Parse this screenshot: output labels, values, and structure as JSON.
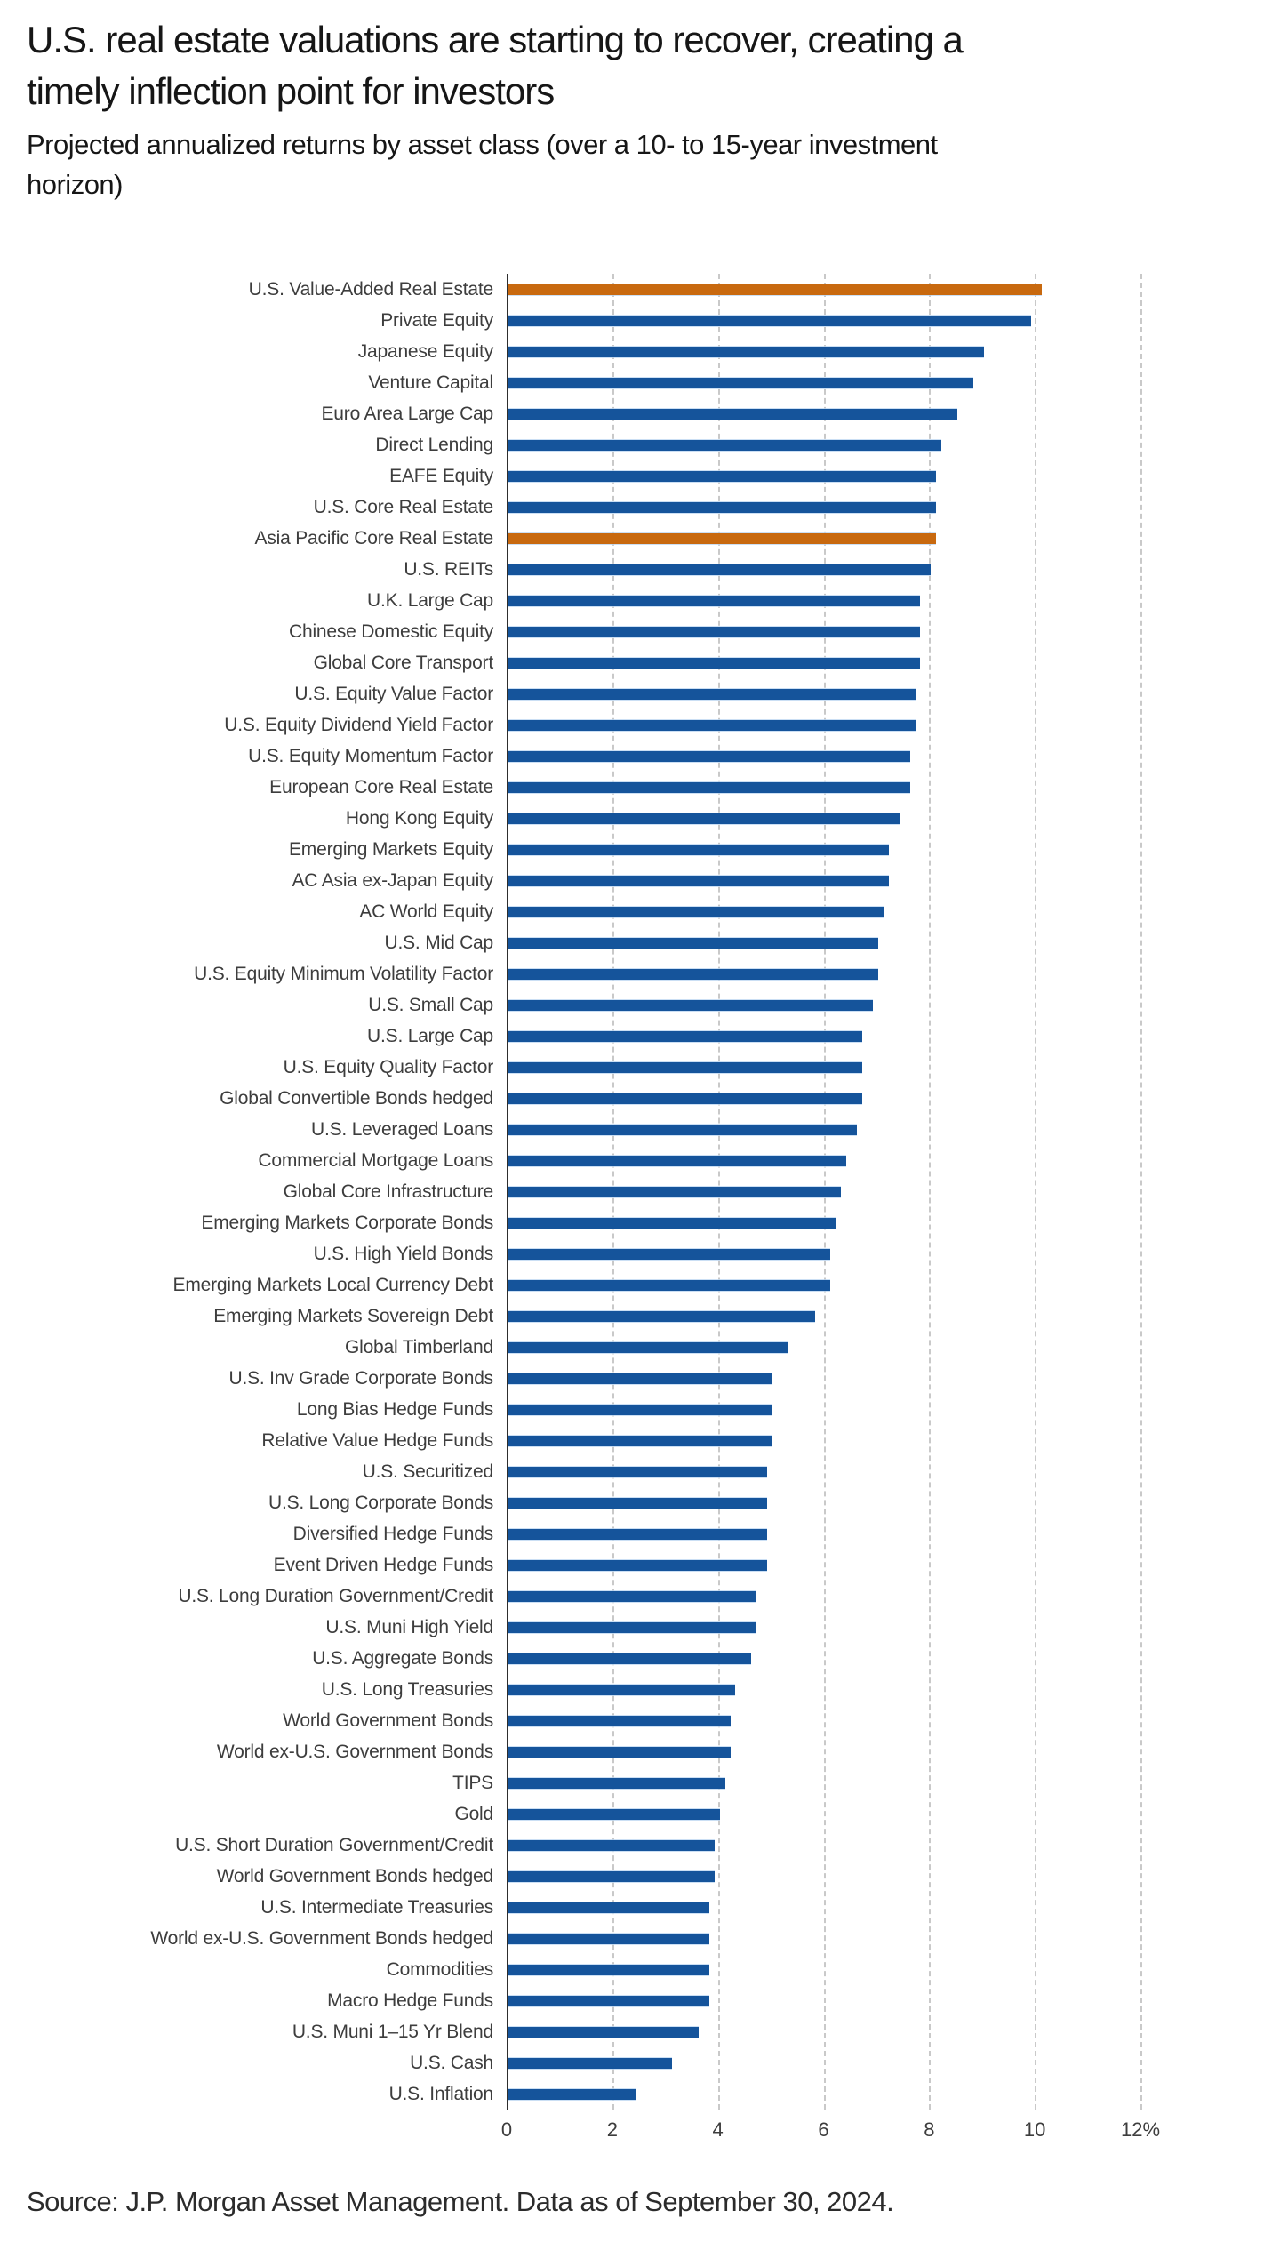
{
  "header": {
    "title": "U.S. real estate valuations are starting to recover, creating a\ntimely inflection point for investors",
    "subtitle": "Projected annualized returns by asset class (over a 10- to 15-year investment\nhorizon)"
  },
  "footer": {
    "source": "Source: J.P. Morgan Asset Management. Data as of September 30, 2024."
  },
  "chart_data": {
    "type": "bar",
    "orientation": "horizontal",
    "title": "Projected annualized returns by asset class (over a 10- to 15-year investment horizon)",
    "xlabel": "",
    "ylabel": "",
    "xlim": [
      0,
      12
    ],
    "x_ticks": [
      0,
      2,
      4,
      6,
      8,
      10,
      12
    ],
    "x_tick_labels": [
      "0",
      "2",
      "4",
      "6",
      "8",
      "10",
      "12%"
    ],
    "grid": true,
    "legend": false,
    "bar_color": "#15549b",
    "highlight_color": "#c8690f",
    "axis_line_color": "#2e2e2e",
    "gridline_color": "#c9c9c9",
    "highlighted_labels": [
      "U.S. Value-Added Real Estate",
      "Asia Pacific Core Real Estate"
    ],
    "series": [
      {
        "label": "U.S. Value-Added Real Estate",
        "value": 10.1,
        "highlight": true
      },
      {
        "label": "Private Equity",
        "value": 9.9,
        "highlight": false
      },
      {
        "label": "Japanese Equity",
        "value": 9.0,
        "highlight": false
      },
      {
        "label": "Venture Capital",
        "value": 8.8,
        "highlight": false
      },
      {
        "label": "Euro Area Large Cap",
        "value": 8.5,
        "highlight": false
      },
      {
        "label": "Direct Lending",
        "value": 8.2,
        "highlight": false
      },
      {
        "label": "EAFE Equity",
        "value": 8.1,
        "highlight": false
      },
      {
        "label": "U.S. Core Real Estate",
        "value": 8.1,
        "highlight": false
      },
      {
        "label": "Asia Pacific Core Real Estate",
        "value": 8.1,
        "highlight": true
      },
      {
        "label": "U.S. REITs",
        "value": 8.0,
        "highlight": false
      },
      {
        "label": "U.K. Large Cap",
        "value": 7.8,
        "highlight": false
      },
      {
        "label": "Chinese Domestic Equity",
        "value": 7.8,
        "highlight": false
      },
      {
        "label": "Global Core Transport",
        "value": 7.8,
        "highlight": false
      },
      {
        "label": "U.S. Equity Value Factor",
        "value": 7.7,
        "highlight": false
      },
      {
        "label": "U.S. Equity Dividend Yield Factor",
        "value": 7.7,
        "highlight": false
      },
      {
        "label": "U.S. Equity Momentum Factor",
        "value": 7.6,
        "highlight": false
      },
      {
        "label": "European Core Real Estate",
        "value": 7.6,
        "highlight": false
      },
      {
        "label": "Hong Kong Equity",
        "value": 7.4,
        "highlight": false
      },
      {
        "label": "Emerging Markets Equity",
        "value": 7.2,
        "highlight": false
      },
      {
        "label": "AC Asia ex-Japan Equity",
        "value": 7.2,
        "highlight": false
      },
      {
        "label": "AC World Equity",
        "value": 7.1,
        "highlight": false
      },
      {
        "label": "U.S. Mid Cap",
        "value": 7.0,
        "highlight": false
      },
      {
        "label": "U.S. Equity Minimum Volatility Factor",
        "value": 7.0,
        "highlight": false
      },
      {
        "label": "U.S. Small Cap",
        "value": 6.9,
        "highlight": false
      },
      {
        "label": "U.S. Large Cap",
        "value": 6.7,
        "highlight": false
      },
      {
        "label": "U.S. Equity Quality Factor",
        "value": 6.7,
        "highlight": false
      },
      {
        "label": "Global Convertible Bonds hedged",
        "value": 6.7,
        "highlight": false
      },
      {
        "label": "U.S. Leveraged Loans",
        "value": 6.6,
        "highlight": false
      },
      {
        "label": "Commercial Mortgage Loans",
        "value": 6.4,
        "highlight": false
      },
      {
        "label": "Global Core Infrastructure",
        "value": 6.3,
        "highlight": false
      },
      {
        "label": "Emerging Markets Corporate Bonds",
        "value": 6.2,
        "highlight": false
      },
      {
        "label": "U.S. High Yield Bonds",
        "value": 6.1,
        "highlight": false
      },
      {
        "label": "Emerging Markets Local Currency Debt",
        "value": 6.1,
        "highlight": false
      },
      {
        "label": "Emerging Markets Sovereign Debt",
        "value": 5.8,
        "highlight": false
      },
      {
        "label": "Global Timberland",
        "value": 5.3,
        "highlight": false
      },
      {
        "label": "U.S. Inv Grade Corporate Bonds",
        "value": 5.0,
        "highlight": false
      },
      {
        "label": "Long Bias Hedge Funds",
        "value": 5.0,
        "highlight": false
      },
      {
        "label": "Relative Value Hedge Funds",
        "value": 5.0,
        "highlight": false
      },
      {
        "label": "U.S. Securitized",
        "value": 4.9,
        "highlight": false
      },
      {
        "label": "U.S. Long Corporate Bonds",
        "value": 4.9,
        "highlight": false
      },
      {
        "label": "Diversified Hedge Funds",
        "value": 4.9,
        "highlight": false
      },
      {
        "label": "Event Driven Hedge Funds",
        "value": 4.9,
        "highlight": false
      },
      {
        "label": "U.S. Long Duration Government/Credit",
        "value": 4.7,
        "highlight": false
      },
      {
        "label": "U.S. Muni High Yield",
        "value": 4.7,
        "highlight": false
      },
      {
        "label": "U.S. Aggregate Bonds",
        "value": 4.6,
        "highlight": false
      },
      {
        "label": "U.S. Long Treasuries",
        "value": 4.3,
        "highlight": false
      },
      {
        "label": "World Government Bonds",
        "value": 4.2,
        "highlight": false
      },
      {
        "label": "World ex-U.S. Government Bonds",
        "value": 4.2,
        "highlight": false
      },
      {
        "label": "TIPS",
        "value": 4.1,
        "highlight": false
      },
      {
        "label": "Gold",
        "value": 4.0,
        "highlight": false
      },
      {
        "label": "U.S. Short Duration Government/Credit",
        "value": 3.9,
        "highlight": false
      },
      {
        "label": "World Government Bonds hedged",
        "value": 3.9,
        "highlight": false
      },
      {
        "label": "U.S. Intermediate Treasuries",
        "value": 3.8,
        "highlight": false
      },
      {
        "label": "World ex-U.S. Government Bonds hedged",
        "value": 3.8,
        "highlight": false
      },
      {
        "label": "Commodities",
        "value": 3.8,
        "highlight": false
      },
      {
        "label": "Macro Hedge Funds",
        "value": 3.8,
        "highlight": false
      },
      {
        "label": "U.S. Muni 1–15 Yr Blend",
        "value": 3.6,
        "highlight": false
      },
      {
        "label": "U.S. Cash",
        "value": 3.1,
        "highlight": false
      },
      {
        "label": "U.S. Inflation",
        "value": 2.4,
        "highlight": false
      }
    ]
  }
}
